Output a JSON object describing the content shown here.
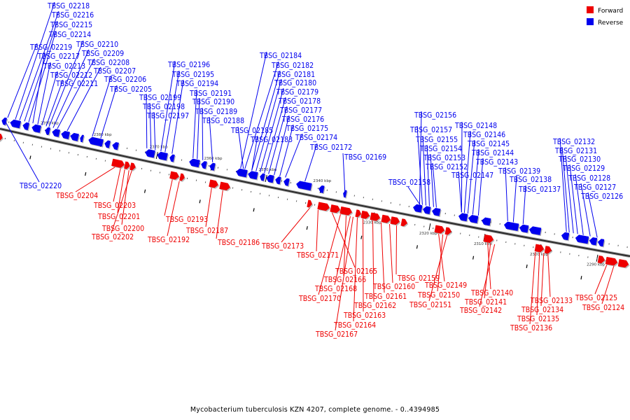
{
  "caption": "Mycobacterium tuberculosis KZN 4207, complete genome. - 0..4394985",
  "legend": [
    {
      "label": "Forward",
      "color": "#ee0000"
    },
    {
      "label": "Reverse",
      "color": "#0000ee"
    }
  ],
  "scale_labels": [
    "2390 kbp",
    "2380 kbp",
    "2370 kbp",
    "2360 kbp",
    "2350 kbp",
    "2340 kbp",
    "2330 kbp",
    "2320 kbp",
    "2310 kbp",
    "2300 kbp",
    "2290 kbp"
  ],
  "reverse_genes": [
    "TBSG_02218",
    "TBSG_02216",
    "TBSG_02215",
    "TBSG_02214",
    "TBSG_02219",
    "TBSG_02210",
    "TBSG_02217",
    "TBSG_02209",
    "TBSG_02213",
    "TBSG_02208",
    "TBSG_02212",
    "TBSG_02207",
    "TBSG_02211",
    "TBSG_02206",
    "TBSG_02205",
    "TBSG_02220",
    "TBSG_02196",
    "TBSG_02195",
    "TBSG_02194",
    "TBSG_02199",
    "TBSG_02191",
    "TBSG_02198",
    "TBSG_02190",
    "TBSG_02197",
    "TBSG_02189",
    "TBSG_02188",
    "TBSG_02184",
    "TBSG_02182",
    "TBSG_02181",
    "TBSG_02180",
    "TBSG_02179",
    "TBSG_02178",
    "TBSG_02177",
    "TBSG_02176",
    "TBSG_02175",
    "TBSG_02185",
    "TBSG_02174",
    "TBSG_02183",
    "TBSG_02172",
    "TBSG_02169",
    "TBSG_02156",
    "TBSG_02157",
    "TBSG_02155",
    "TBSG_02154",
    "TBSG_02153",
    "TBSG_02152",
    "TBSG_02158",
    "TBSG_02148",
    "TBSG_02146",
    "TBSG_02145",
    "TBSG_02144",
    "TBSG_02143",
    "TBSG_02147",
    "TBSG_02139",
    "TBSG_02138",
    "TBSG_02137",
    "TBSG_02132",
    "TBSG_02131",
    "TBSG_02130",
    "TBSG_02129",
    "TBSG_02128",
    "TBSG_02127",
    "TBSG_02126"
  ],
  "forward_genes": [
    "TBSG_02204",
    "TBSG_02203",
    "TBSG_02201",
    "TBSG_02200",
    "TBSG_02202",
    "TBSG_02193",
    "TBSG_02192",
    "TBSG_02187",
    "TBSG_02186",
    "TBSG_02173",
    "TBSG_02171",
    "TBSG_02165",
    "TBSG_02166",
    "TBSG_02159",
    "TBSG_02168",
    "TBSG_02160",
    "TBSG_02170",
    "TBSG_02161",
    "TBSG_02162",
    "TBSG_02163",
    "TBSG_02164",
    "TBSG_02167",
    "TBSG_02149",
    "TBSG_02150",
    "TBSG_02151",
    "TBSG_02140",
    "TBSG_02141",
    "TBSG_02142",
    "TBSG_02133",
    "TBSG_02134",
    "TBSG_02135",
    "TBSG_02136",
    "TBSG_02125",
    "TBSG_02124"
  ]
}
